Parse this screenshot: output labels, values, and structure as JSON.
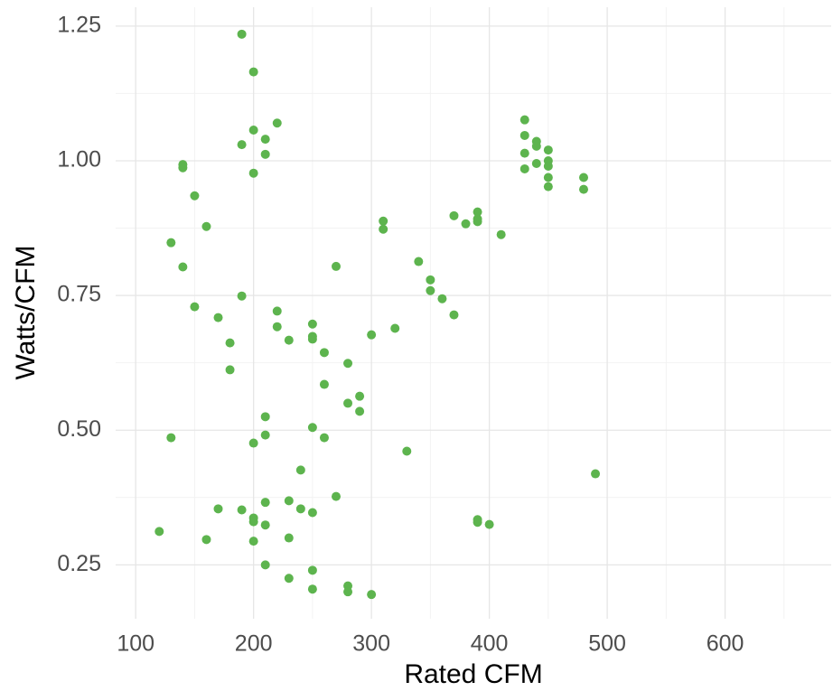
{
  "chart_data": {
    "type": "scatter",
    "x_label": "Rated CFM",
    "y_label": "Watts/CFM",
    "color": "#5db44e",
    "grid": true,
    "xlim": [
      83,
      690
    ],
    "ylim": [
      0.15,
      1.285
    ],
    "xticks": [
      100,
      200,
      300,
      400,
      500,
      600
    ],
    "xticks_minor": [
      150,
      250,
      350,
      450,
      550,
      650
    ],
    "yticks": [
      {
        "value": 0.25,
        "label": "0.25"
      },
      {
        "value": 0.5,
        "label": "0.50"
      },
      {
        "value": 0.75,
        "label": "0.75"
      },
      {
        "value": 1.0,
        "label": "1.00"
      },
      {
        "value": 1.25,
        "label": "1.25"
      }
    ],
    "yticks_minor": [
      0.375,
      0.625,
      0.875,
      1.125
    ],
    "x": [
      190,
      200,
      220,
      200,
      210,
      190,
      210,
      200,
      140,
      140,
      150,
      160,
      130,
      140,
      190,
      150,
      170,
      180,
      180,
      220,
      220,
      230,
      250,
      250,
      250,
      260,
      270,
      280,
      260,
      290,
      280,
      290,
      300,
      320,
      310,
      310,
      340,
      350,
      350,
      360,
      370,
      370,
      380,
      390,
      390,
      390,
      410,
      430,
      430,
      430,
      430,
      440,
      440,
      440,
      450,
      450,
      450,
      450,
      450,
      480,
      480,
      490,
      330,
      260,
      250,
      210,
      210,
      200,
      130,
      240,
      270,
      230,
      210,
      240,
      250,
      170,
      190,
      200,
      200,
      210,
      120,
      160,
      200,
      230,
      390,
      390,
      400,
      210,
      250,
      230,
      250,
      280,
      280,
      300
    ],
    "values": [
      1.235,
      1.165,
      1.07,
      1.057,
      1.04,
      1.03,
      1.012,
      0.977,
      0.993,
      0.987,
      0.935,
      0.878,
      0.848,
      0.803,
      0.749,
      0.729,
      0.709,
      0.662,
      0.612,
      0.721,
      0.692,
      0.667,
      0.697,
      0.674,
      0.669,
      0.644,
      0.804,
      0.624,
      0.585,
      0.563,
      0.55,
      0.535,
      0.677,
      0.689,
      0.888,
      0.873,
      0.813,
      0.779,
      0.759,
      0.744,
      0.714,
      0.898,
      0.883,
      0.905,
      0.892,
      0.887,
      0.863,
      1.076,
      1.047,
      1.014,
      0.985,
      1.036,
      1.027,
      0.995,
      1.02,
      1.0,
      0.99,
      0.969,
      0.952,
      0.969,
      0.947,
      0.419,
      0.461,
      0.486,
      0.505,
      0.525,
      0.491,
      0.476,
      0.486,
      0.426,
      0.377,
      0.369,
      0.366,
      0.354,
      0.347,
      0.354,
      0.352,
      0.337,
      0.33,
      0.324,
      0.312,
      0.297,
      0.294,
      0.3,
      0.334,
      0.329,
      0.325,
      0.25,
      0.24,
      0.225,
      0.205,
      0.211,
      0.2,
      0.195
    ]
  }
}
